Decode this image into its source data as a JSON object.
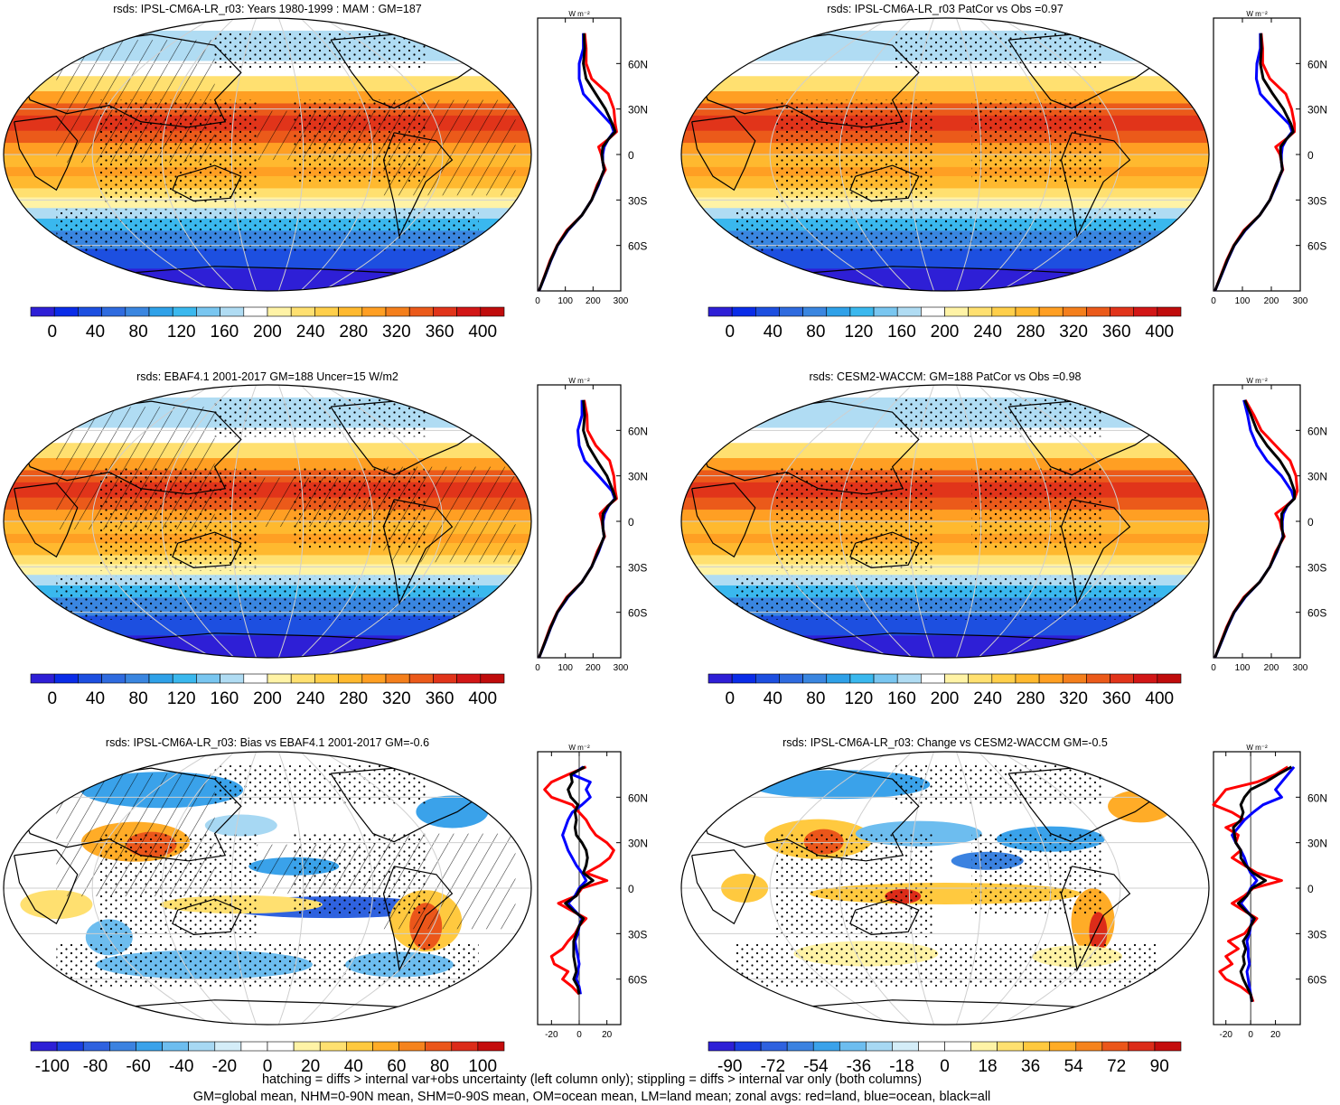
{
  "panels": [
    {
      "title": "rsds: IPSL-CM6A-LR_r03: Years 1980-1999 : MAM : GM=187",
      "map_kind": "abs",
      "hatching": true,
      "stipple": true,
      "colorbar_labels": [
        "0",
        "40",
        "80",
        "120",
        "160",
        "200",
        "240",
        "280",
        "320",
        "360",
        "400"
      ],
      "zonal": {
        "unit": "W m⁻²",
        "xticks": [
          "0",
          "100",
          "200",
          "300"
        ],
        "xlim": [
          0,
          300
        ],
        "yticks": [
          "60N",
          "30N",
          "0",
          "30S",
          "60S"
        ],
        "ylim": [
          -90,
          90
        ],
        "lat": [
          80,
          70,
          60,
          50,
          40,
          30,
          20,
          15,
          10,
          5,
          0,
          -5,
          -10,
          -20,
          -30,
          -40,
          -50,
          -60,
          -70,
          -80,
          -90
        ],
        "land": [
          170,
          175,
          175,
          195,
          255,
          275,
          280,
          285,
          255,
          220,
          230,
          235,
          245,
          215,
          195,
          160,
          105,
          70,
          45,
          25,
          5
        ],
        "ocean": [
          165,
          165,
          150,
          150,
          165,
          215,
          265,
          275,
          255,
          240,
          235,
          235,
          240,
          220,
          195,
          160,
          110,
          72,
          48,
          27,
          5
        ],
        "all": [
          167,
          170,
          165,
          175,
          210,
          245,
          270,
          280,
          255,
          235,
          232,
          235,
          240,
          218,
          195,
          160,
          108,
          71,
          47,
          26,
          5
        ]
      }
    },
    {
      "title": "rsds: IPSL-CM6A-LR_r03 PatCor vs Obs =0.97",
      "map_kind": "abs",
      "hatching": false,
      "stipple": true,
      "colorbar_labels": [
        "0",
        "40",
        "80",
        "120",
        "160",
        "200",
        "240",
        "280",
        "320",
        "360",
        "400"
      ],
      "zonal": {
        "unit": "W m⁻²",
        "xticks": [
          "0",
          "100",
          "200",
          "300"
        ],
        "xlim": [
          0,
          300
        ],
        "yticks": [
          "60N",
          "30N",
          "0",
          "30S",
          "60S"
        ],
        "ylim": [
          -90,
          90
        ],
        "lat": [
          80,
          70,
          60,
          50,
          40,
          30,
          20,
          15,
          10,
          5,
          0,
          -5,
          -10,
          -20,
          -30,
          -40,
          -50,
          -60,
          -70,
          -80,
          -90
        ],
        "land": [
          165,
          170,
          170,
          195,
          250,
          270,
          280,
          280,
          250,
          215,
          230,
          235,
          240,
          215,
          195,
          160,
          105,
          70,
          45,
          25,
          5
        ],
        "ocean": [
          162,
          162,
          150,
          148,
          162,
          210,
          262,
          272,
          252,
          238,
          235,
          235,
          238,
          218,
          195,
          160,
          110,
          72,
          48,
          27,
          5
        ],
        "all": [
          164,
          166,
          162,
          172,
          205,
          242,
          268,
          276,
          252,
          232,
          232,
          235,
          238,
          216,
          195,
          160,
          108,
          71,
          47,
          26,
          5
        ]
      }
    },
    {
      "title": "rsds: EBAF4.1 2001-2017 GM=188 Uncer=15 W/m2",
      "map_kind": "abs",
      "hatching": true,
      "stipple": true,
      "colorbar_labels": [
        "0",
        "40",
        "80",
        "120",
        "160",
        "200",
        "240",
        "280",
        "320",
        "360",
        "400"
      ],
      "zonal": {
        "unit": "W m⁻²",
        "xticks": [
          "0",
          "100",
          "200",
          "300"
        ],
        "xlim": [
          0,
          300
        ],
        "yticks": [
          "60N",
          "30N",
          "0",
          "30S",
          "60S"
        ],
        "ylim": [
          -90,
          90
        ],
        "lat": [
          80,
          70,
          60,
          50,
          40,
          30,
          20,
          15,
          10,
          5,
          0,
          -5,
          -10,
          -20,
          -30,
          -40,
          -50,
          -60,
          -70,
          -80,
          -90
        ],
        "land": [
          168,
          178,
          180,
          210,
          260,
          275,
          280,
          285,
          252,
          225,
          232,
          236,
          242,
          215,
          195,
          160,
          105,
          70,
          45,
          25,
          5
        ],
        "ocean": [
          160,
          160,
          145,
          150,
          170,
          220,
          268,
          278,
          256,
          242,
          236,
          236,
          240,
          220,
          195,
          160,
          110,
          72,
          48,
          27,
          5
        ],
        "all": [
          165,
          170,
          165,
          182,
          215,
          250,
          272,
          281,
          254,
          236,
          234,
          236,
          240,
          218,
          195,
          160,
          108,
          71,
          47,
          26,
          5
        ]
      }
    },
    {
      "title": "rsds: CESM2-WACCM: GM=188 PatCor vs Obs =0.98",
      "map_kind": "abs",
      "hatching": false,
      "stipple": true,
      "colorbar_labels": [
        "0",
        "40",
        "80",
        "120",
        "160",
        "200",
        "240",
        "280",
        "320",
        "360",
        "400"
      ],
      "zonal": {
        "unit": "W m⁻²",
        "xticks": [
          "0",
          "100",
          "200",
          "300"
        ],
        "xlim": [
          0,
          300
        ],
        "yticks": [
          "60N",
          "30N",
          "0",
          "30S",
          "60S"
        ],
        "ylim": [
          -90,
          90
        ],
        "lat": [
          80,
          70,
          60,
          50,
          40,
          30,
          20,
          15,
          10,
          5,
          0,
          -5,
          -10,
          -20,
          -30,
          -40,
          -50,
          -60,
          -70,
          -80,
          -90
        ],
        "land": [
          110,
          140,
          165,
          215,
          265,
          285,
          290,
          280,
          250,
          215,
          230,
          235,
          245,
          215,
          195,
          160,
          105,
          70,
          45,
          25,
          5
        ],
        "ocean": [
          105,
          118,
          128,
          150,
          185,
          235,
          270,
          278,
          255,
          242,
          238,
          238,
          240,
          220,
          195,
          160,
          110,
          72,
          48,
          27,
          5
        ],
        "all": [
          108,
          130,
          150,
          185,
          230,
          262,
          280,
          280,
          254,
          236,
          236,
          237,
          242,
          218,
          195,
          160,
          108,
          71,
          47,
          26,
          5
        ]
      }
    },
    {
      "title": "rsds: IPSL-CM6A-LR_r03: Bias vs EBAF4.1 2001-2017 GM=-0.6",
      "map_kind": "bias",
      "hatching": true,
      "stipple": true,
      "colorbar_labels": [
        "-100",
        "-80",
        "-60",
        "-40",
        "-20",
        "0",
        "20",
        "40",
        "60",
        "80",
        "100"
      ],
      "zonal": {
        "unit": "W m⁻²",
        "xticks": [
          "-20",
          "0",
          "20"
        ],
        "xlim": [
          -30,
          30
        ],
        "yticks": [
          "60N",
          "30N",
          "0",
          "30S",
          "60S"
        ],
        "ylim": [
          -90,
          90
        ],
        "lat": [
          80,
          75,
          70,
          65,
          60,
          55,
          50,
          45,
          40,
          35,
          30,
          25,
          20,
          15,
          10,
          5,
          0,
          -5,
          -10,
          -15,
          -20,
          -25,
          -30,
          -35,
          -40,
          -45,
          -50,
          -55,
          -60,
          -65,
          -70
        ],
        "land": [
          5,
          -8,
          -20,
          -25,
          -20,
          -5,
          0,
          5,
          8,
          12,
          20,
          25,
          22,
          15,
          5,
          20,
          2,
          -2,
          -15,
          -5,
          5,
          0,
          -3,
          -8,
          -12,
          -20,
          -18,
          -8,
          -12,
          -5,
          0
        ],
        "ocean": [
          3,
          -5,
          8,
          5,
          8,
          2,
          -5,
          -8,
          -10,
          -12,
          -10,
          -8,
          -5,
          -2,
          2,
          5,
          0,
          -3,
          -8,
          -3,
          2,
          0,
          -1,
          -3,
          -2,
          -1,
          0,
          -1,
          -2,
          0,
          1
        ],
        "all": [
          4,
          -6,
          -5,
          -8,
          -6,
          -1,
          -3,
          -2,
          -3,
          -2,
          2,
          5,
          6,
          5,
          3,
          10,
          1,
          -2,
          -10,
          -4,
          3,
          0,
          -2,
          -4,
          -4,
          -4,
          -3,
          -2,
          -4,
          -1,
          0
        ]
      }
    },
    {
      "title": "rsds: IPSL-CM6A-LR_r03: Change vs CESM2-WACCM GM=-0.5",
      "map_kind": "change",
      "hatching": false,
      "stipple": true,
      "colorbar_labels": [
        "-90",
        "-72",
        "-54",
        "-36",
        "-18",
        "0",
        "18",
        "36",
        "54",
        "72",
        "90"
      ],
      "zonal": {
        "unit": "W m⁻²",
        "xticks": [
          "-20",
          "0",
          "20"
        ],
        "xlim": [
          -30,
          40
        ],
        "yticks": [
          "60N",
          "30N",
          "0",
          "30S",
          "60S"
        ],
        "ylim": [
          -90,
          90
        ],
        "lat": [
          80,
          75,
          70,
          65,
          60,
          55,
          50,
          45,
          40,
          35,
          30,
          25,
          20,
          15,
          10,
          5,
          0,
          -5,
          -10,
          -15,
          -20,
          -25,
          -30,
          -35,
          -40,
          -45,
          -50,
          -55,
          -60,
          -65,
          -70,
          -75
        ],
        "land": [
          30,
          20,
          5,
          -20,
          -25,
          -30,
          -15,
          -5,
          -20,
          -10,
          -12,
          -8,
          -15,
          -5,
          5,
          25,
          2,
          -5,
          -15,
          -5,
          5,
          0,
          -5,
          -18,
          -10,
          -20,
          -15,
          -25,
          -20,
          -8,
          0,
          2
        ],
        "ocean": [
          35,
          30,
          25,
          20,
          25,
          10,
          2,
          -5,
          -10,
          -15,
          -12,
          -8,
          -5,
          -3,
          0,
          5,
          0,
          -3,
          -8,
          -3,
          2,
          0,
          -1,
          -3,
          -2,
          -2,
          -1,
          -3,
          -2,
          -1,
          0,
          1
        ],
        "all": [
          33,
          22,
          12,
          0,
          -5,
          -8,
          -6,
          -8,
          -14,
          -13,
          -12,
          -8,
          -8,
          -4,
          2,
          12,
          1,
          -3,
          -10,
          -4,
          3,
          0,
          -2,
          -6,
          -4,
          -6,
          -5,
          -8,
          -6,
          -3,
          0,
          1
        ]
      }
    }
  ],
  "footer": {
    "line1": "hatching = diffs > internal var+obs uncertainty (left column only); stippling = diffs > internal var only (both columns)",
    "line2": "GM=global mean, NHM=0-90N mean, SHM=0-90S mean, OM=ocean mean, LM=land mean; zonal avgs: red=land, blue=ocean, black=all"
  },
  "colors": {
    "land_line": "#ff0000",
    "ocean_line": "#0000ff",
    "all_line": "#000000",
    "abs_scale": [
      "#2e1fd6",
      "#0a2ce8",
      "#1d4fe0",
      "#2f6bdf",
      "#3a86e0",
      "#2fa1e8",
      "#3ab8ee",
      "#79c6f0",
      "#b0dcf3",
      "#ffffff",
      "#fff3a6",
      "#ffe070",
      "#ffcf4a",
      "#ffb92f",
      "#ff9f23",
      "#f47f1c",
      "#eb5a1a",
      "#e1341a",
      "#d21616",
      "#c00c0c"
    ],
    "diff_scale": [
      "#2d1fd6",
      "#1a3fe2",
      "#2f62df",
      "#3b82e0",
      "#3aa2ea",
      "#6dbdef",
      "#a7d8f3",
      "#d4edf8",
      "#ffffff",
      "#ffffff",
      "#fff3a6",
      "#ffe070",
      "#ffc93f",
      "#ffac27",
      "#f5831d",
      "#eb561a",
      "#dc2c19",
      "#c40c0c"
    ]
  }
}
